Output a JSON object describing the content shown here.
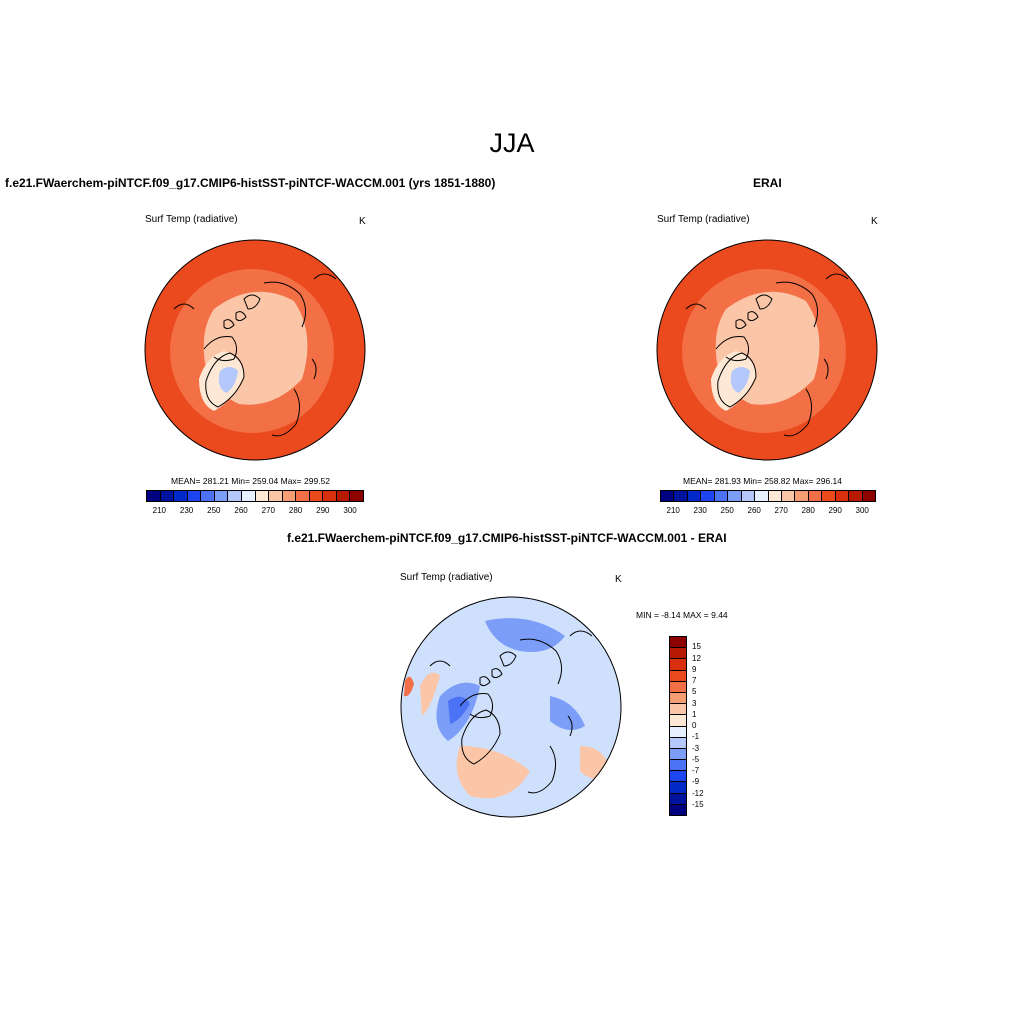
{
  "figure": {
    "season": "JJA"
  },
  "panels": [
    {
      "title": "f.e21.FWaerchem-piNTCF.f09_g17.CMIP6-histSST-piNTCF-WACCM.001 (yrs 1851-1880)",
      "variable": "Surf Temp (radiative)",
      "units": "K",
      "stats_text": "MEAN= 281.21   Min= 259.04   Max= 299.52",
      "stats": {
        "mean": 281.21,
        "min": 259.04,
        "max": 299.52
      }
    },
    {
      "title": "ERAI",
      "variable": "Surf Temp (radiative)",
      "units": "K",
      "stats_text": "MEAN= 281.93   Min= 258.82   Max= 296.14",
      "stats": {
        "mean": 281.93,
        "min": 258.82,
        "max": 296.14
      }
    },
    {
      "title": "f.e21.FWaerchem-piNTCF.f09_g17.CMIP6-histSST-piNTCF-WACCM.001 - ERAI",
      "variable": "Surf Temp (radiative)",
      "units": "K",
      "stats_text": "MIN =  -8.14  MAX =   9.44",
      "stats": {
        "min": -8.14,
        "max": 9.44
      }
    }
  ],
  "colorbars": {
    "absolute": {
      "colors": [
        "#000080",
        "#00139f",
        "#0029c8",
        "#1e46f0",
        "#4c72f5",
        "#7d9ef8",
        "#b4c8fb",
        "#e6f0fe",
        "#fde8d6",
        "#fbc5a8",
        "#f79d74",
        "#f36f45",
        "#eb4a1f",
        "#d8300e",
        "#b71a04",
        "#8c0000"
      ],
      "tick_labels": [
        "210",
        "230",
        "250",
        "260",
        "270",
        "280",
        "290",
        "300"
      ]
    },
    "difference": {
      "colors": [
        "#8c0000",
        "#b71a04",
        "#d8300e",
        "#eb4a1f",
        "#f36f45",
        "#f79d74",
        "#fbc5a8",
        "#fde8d6",
        "#e6f0fe",
        "#b4c8fb",
        "#7d9ef8",
        "#4c72f5",
        "#1e46f0",
        "#0029c8",
        "#00139f",
        "#000080"
      ],
      "tick_labels": [
        "15",
        "12",
        "9",
        "7",
        "5",
        "3",
        "1",
        "0",
        "-1",
        "-3",
        "-5",
        "-7",
        "-9",
        "-12",
        "-15"
      ]
    }
  },
  "map_colors": {
    "outer_warm": "#eb4a1f",
    "mid_warm": "#f36f45",
    "arctic_ocean": "#fbc5a8",
    "greenland": "#fde8d6",
    "greenland_core": "#b4c8fb",
    "diff_base": "#cfe0fc",
    "diff_cold": "#7d9ef8",
    "diff_colder": "#4c72f5",
    "diff_warm": "#fbc5a8",
    "diff_hot": "#f36f45",
    "coast": "#000000"
  }
}
